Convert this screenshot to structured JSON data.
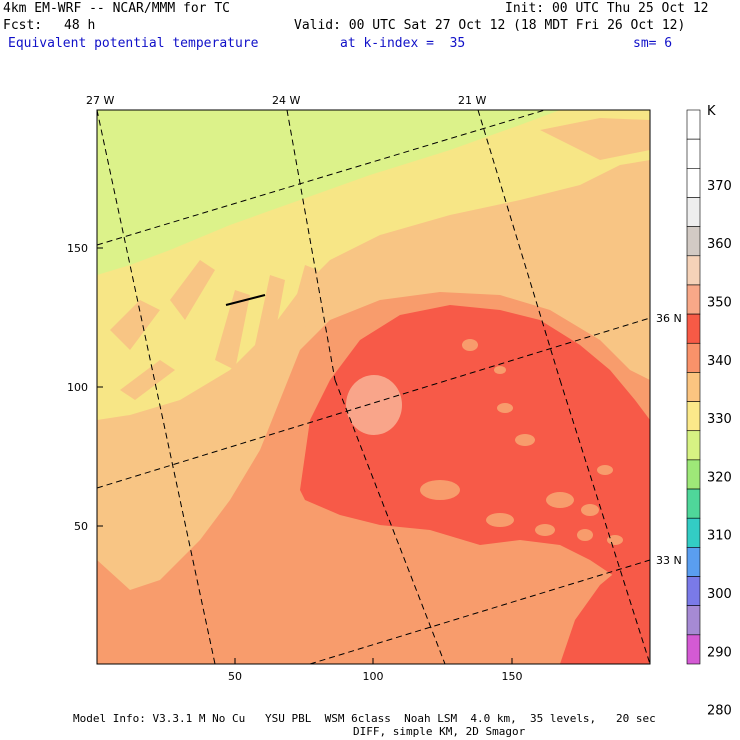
{
  "header": {
    "title": "4km EM-WRF -- NCAR/MMM for TC",
    "init": "Init: 00 UTC Thu 25 Oct 12",
    "fcst_label": "Fcst:",
    "fcst_value": "48 h",
    "valid": "Valid: 00 UTC Sat 27 Oct 12 (18 MDT Fri 26 Oct 12)",
    "field": "Equivalent potential temperature",
    "level": "at k-index =  35",
    "smoothing": "sm= 6"
  },
  "map": {
    "lon_labels": [
      "27 W",
      "24 W",
      "21 W"
    ],
    "lat_labels": [
      "36 N",
      "33 N"
    ],
    "y_ticks": [
      "150",
      "100",
      "50"
    ],
    "x_ticks": [
      "50",
      "100",
      "150"
    ],
    "x_range": [
      0,
      200
    ],
    "y_range": [
      0,
      200
    ]
  },
  "colorbar": {
    "unit": "K",
    "labels": [
      "370",
      "360",
      "350",
      "340",
      "330",
      "320",
      "310",
      "300",
      "290",
      "280"
    ],
    "colors": [
      "#ffffff",
      "#ffffff",
      "#ffffff",
      "#eeeeee",
      "#d2cac4",
      "#f5d2b8",
      "#f8a888",
      "#f75a46",
      "#f9926a",
      "#fbc480",
      "#fbe98a",
      "#d7f283",
      "#9ee878",
      "#4fd79a",
      "#33ccc4",
      "#5a9ef0",
      "#7a7ae8",
      "#a68ad4",
      "#d45ad4"
    ]
  },
  "field_colors": {
    "c320": "#f7e686",
    "c310": "#dcf28a",
    "c330": "#f8c584",
    "c335": "#f89c6c",
    "c340": "#f75a48",
    "c350": "#f9a58a"
  },
  "footer": {
    "line1": "Model Info: V3.3.1 M No Cu   YSU PBL  WSM 6class  Noah LSM  4.0 km,  35 levels,   20 sec",
    "line2": "DIFF, simple KM, 2D Smagor"
  }
}
